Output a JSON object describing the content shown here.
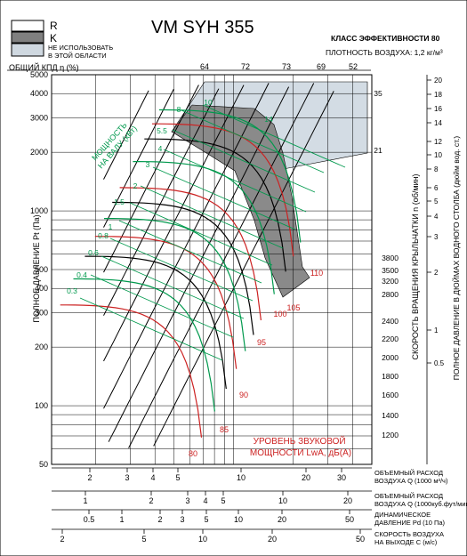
{
  "chart_data": {
    "type": "line",
    "title": "VM SYH 355",
    "legend": [
      {
        "key": "R",
        "label": "R",
        "color": "#ffffff"
      },
      {
        "key": "K",
        "label": "K",
        "color": "#808080"
      },
      {
        "key": "U",
        "label": "НЕ ИСПОЛЬЗОВАТЬ В ЭТОЙ ОБЛАСТИ",
        "color": "#cfd8e0"
      }
    ],
    "efficiency_class": "КЛАСС ЭФФЕКТИВНОСТИ 80",
    "air_density": "ПЛОТНОСТЬ ВОЗДУХА: 1,2 кг/м³",
    "efficiency_label": "ОБЩИЙ КПД η (%)",
    "efficiency_ticks": [
      "64",
      "72",
      "73",
      "69",
      "52"
    ],
    "y_left_label": "ПОЛНОЕ ДАВЛЕНИЕ Pt (Па)",
    "y_left_ticks": [
      "50",
      "100",
      "200",
      "300",
      "400",
      "500",
      "1000",
      "2000",
      "3000",
      "4000",
      "5000"
    ],
    "ylim": [
      50,
      5000
    ],
    "xlim": [
      1.2,
      50
    ],
    "rpm_label": "СКОРОСТЬ ВРАЩЕНИЯ КРЫЛЬЧАТКИ n (об/мин)",
    "rpm_ticks": [
      "1200",
      "1400",
      "1600",
      "1800",
      "2000",
      "2200",
      "2400",
      "2800",
      "3200",
      "3500",
      "3800"
    ],
    "y_right_label": "ПОЛНОЕ ДАВЛЕНИЕ В ДЮЙМАХ ВОДНОГО СТОЛБА (дюйм вод. ст.)",
    "y_right_ticks": [
      "0.5",
      "1",
      "2",
      "3",
      "4",
      "5",
      "6",
      "8",
      "10",
      "12",
      "14",
      "16",
      "18",
      "20"
    ],
    "power_label": [
      "МОЩНОСТЬ",
      "НА ВАЛУ (кВт)"
    ],
    "power_ticks": [
      "0.3",
      "0.4",
      "0.6",
      "0.8",
      "1",
      "1.5",
      "2",
      "3",
      "4",
      "5.5",
      "8",
      "10",
      "14",
      "21",
      "35"
    ],
    "sound_label": [
      "УРОВЕНЬ ЗВУКОВОЙ",
      "МОЩНОСТИ LwA, дБ(А)"
    ],
    "sound_ticks": [
      "80",
      "85",
      "90",
      "95",
      "100",
      "105",
      "110"
    ],
    "bottom_scales": [
      {
        "label": [
          "ОБЪЕМНЫЙ РАСХОД",
          "ВОЗДУХА Q (1000 м³/ч)"
        ],
        "ticks": [
          "2",
          "3",
          "4",
          "5",
          "10",
          "20",
          "30"
        ]
      },
      {
        "label": [
          "ОБЪЕМНЫЙ РАСХОД",
          "ВОЗДУХА Q (1000куб.фут/мин)"
        ],
        "ticks": [
          "1",
          "2",
          "3",
          "4",
          "5",
          "10",
          "20"
        ]
      },
      {
        "label": [
          "ДИНАМИЧЕСКОЕ",
          "ДАВЛЕНИЕ Pd (10 Па)"
        ],
        "ticks": [
          "0.5",
          "1",
          "2",
          "3",
          "5",
          "10",
          "20",
          "50"
        ]
      },
      {
        "label": [
          "СКОРОСТЬ ВОЗДУХА",
          "НА ВЫХОДЕ C (м/с)"
        ],
        "ticks": [
          "2",
          "5",
          "10",
          "20",
          "50"
        ]
      }
    ]
  }
}
